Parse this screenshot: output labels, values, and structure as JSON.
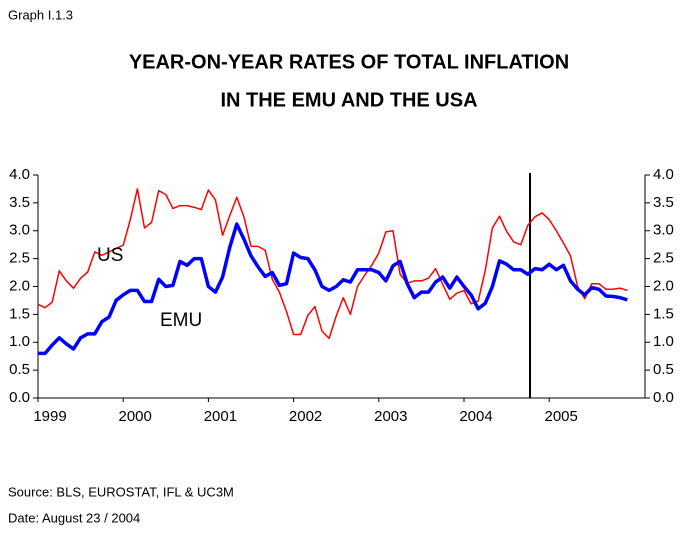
{
  "chart_data": {
    "type": "line",
    "label": "Graph I.1.3",
    "title": [
      "YEAR-ON-YEAR RATES OF TOTAL INFLATION",
      "IN THE EMU AND THE USA"
    ],
    "categories": [
      "1999",
      null,
      null,
      null,
      null,
      null,
      null,
      null,
      null,
      null,
      null,
      null,
      "2000",
      null,
      null,
      null,
      null,
      null,
      null,
      null,
      null,
      null,
      null,
      null,
      "2001",
      null,
      null,
      null,
      null,
      null,
      null,
      null,
      null,
      null,
      null,
      null,
      "2002",
      null,
      null,
      null,
      null,
      null,
      null,
      null,
      null,
      null,
      null,
      null,
      "2003",
      null,
      null,
      null,
      null,
      null,
      null,
      null,
      null,
      null,
      null,
      null,
      "2004",
      null,
      null,
      null,
      null,
      null,
      null,
      null,
      null,
      null,
      null,
      null,
      "2005",
      null,
      null,
      null,
      null,
      null,
      null,
      null,
      null,
      null,
      null,
      null
    ],
    "series": [
      {
        "name": "US",
        "color": "#ff0000",
        "width": 1.5,
        "values": [
          1.68,
          1.62,
          1.72,
          2.28,
          2.1,
          1.97,
          2.15,
          2.26,
          2.62,
          2.56,
          2.62,
          2.68,
          2.74,
          3.2,
          3.75,
          3.05,
          3.15,
          3.72,
          3.65,
          3.4,
          3.45,
          3.45,
          3.42,
          3.38,
          3.73,
          3.55,
          2.92,
          3.27,
          3.6,
          3.25,
          2.72,
          2.72,
          2.65,
          2.13,
          1.9,
          1.55,
          1.14,
          1.14,
          1.48,
          1.64,
          1.2,
          1.07,
          1.47,
          1.8,
          1.5,
          2.0,
          2.2,
          2.38,
          2.6,
          2.98,
          3.0,
          2.22,
          2.06,
          2.1,
          2.1,
          2.15,
          2.32,
          2.04,
          1.77,
          1.88,
          1.93,
          1.69,
          1.74,
          2.29,
          3.05,
          3.26,
          2.99,
          2.8,
          2.75,
          3.1,
          3.25,
          3.32,
          3.2,
          3.0,
          2.78,
          2.55,
          2.0,
          1.78,
          2.05,
          2.05,
          1.95,
          1.95,
          1.97,
          1.93
        ]
      },
      {
        "name": "EMU",
        "color": "#0000ff",
        "width": 3.5,
        "values": [
          0.8,
          0.8,
          0.95,
          1.08,
          0.97,
          0.88,
          1.08,
          1.15,
          1.15,
          1.37,
          1.45,
          1.75,
          1.85,
          1.93,
          1.93,
          1.73,
          1.73,
          2.13,
          2.0,
          2.02,
          2.45,
          2.38,
          2.5,
          2.5,
          2.0,
          1.9,
          2.17,
          2.7,
          3.12,
          2.85,
          2.55,
          2.35,
          2.18,
          2.25,
          2.02,
          2.05,
          2.6,
          2.52,
          2.5,
          2.3,
          2.0,
          1.93,
          2.0,
          2.12,
          2.08,
          2.3,
          2.3,
          2.3,
          2.25,
          2.1,
          2.37,
          2.45,
          2.05,
          1.8,
          1.9,
          1.9,
          2.08,
          2.17,
          1.97,
          2.17,
          2.0,
          1.85,
          1.6,
          1.7,
          2.0,
          2.46,
          2.4,
          2.3,
          2.3,
          2.22,
          2.32,
          2.3,
          2.4,
          2.3,
          2.38,
          2.1,
          1.95,
          1.85,
          1.98,
          1.95,
          1.83,
          1.82,
          1.8,
          1.76
        ]
      }
    ],
    "ylim": [
      0,
      4
    ],
    "yticks": [
      {
        "value": 0,
        "label": "0.0"
      },
      0.5,
      {
        "value": 1,
        "label": "1.0"
      },
      1.5,
      {
        "value": 2,
        "label": "2.0"
      },
      2.5,
      {
        "value": 3,
        "label": "3.0"
      },
      3.5,
      {
        "value": 4,
        "label": "4.0"
      }
    ],
    "y2lim": [
      0,
      4
    ],
    "y2ticks": [
      {
        "value": 0,
        "label": "0.0"
      },
      0.5,
      {
        "value": 1,
        "label": "1.0"
      },
      1.5,
      {
        "value": 2,
        "label": "2.0"
      },
      2.5,
      {
        "value": 3,
        "label": "3.0"
      },
      3.5,
      {
        "value": 4,
        "label": "4.0"
      }
    ],
    "grid": false,
    "source": "Source: BLS, EUROSTAT, IFL & UC3M",
    "date": "Date: August 23 / 2004"
  }
}
